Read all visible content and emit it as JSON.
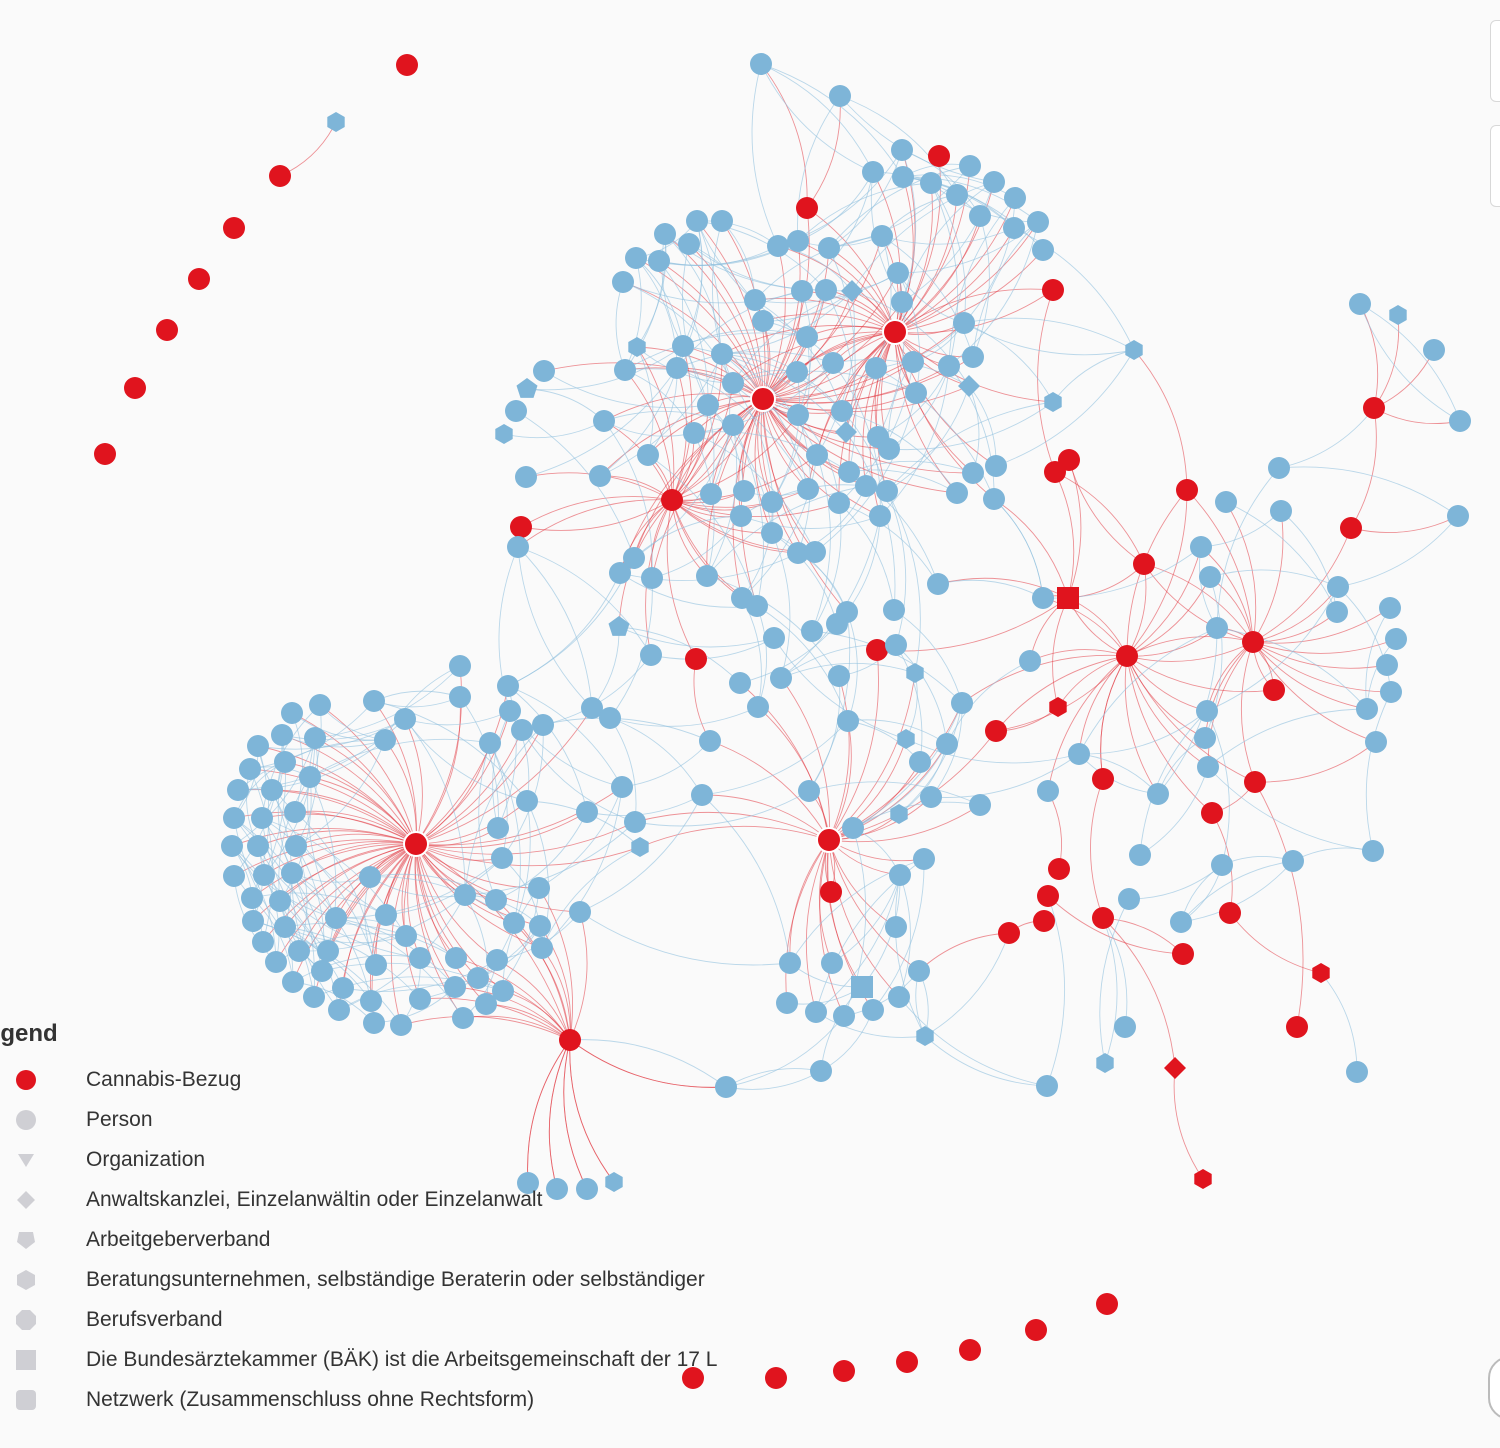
{
  "legend": {
    "title": "egend",
    "items": [
      {
        "key": "cannabis",
        "label": "Cannabis-Bezug",
        "shape": "circle",
        "color": "#e0141e"
      },
      {
        "key": "person",
        "label": "Person",
        "shape": "circle",
        "color": "#cfcfd4"
      },
      {
        "key": "organization",
        "label": "Organization",
        "shape": "triangle-down",
        "color": "#cfcfd4"
      },
      {
        "key": "law-firm",
        "label": "Anwaltskanzlei, Einzelanwältin oder Einzelanwalt",
        "shape": "diamond",
        "color": "#cfcfd4"
      },
      {
        "key": "employer-assoc",
        "label": "Arbeitgeberverband",
        "shape": "pentagon",
        "color": "#cfcfd4"
      },
      {
        "key": "consulting",
        "label": "Beratungsunternehmen, selbständige Beraterin oder selbständiger",
        "shape": "hexagon",
        "color": "#cfcfd4"
      },
      {
        "key": "professional-assoc",
        "label": "Berufsverband",
        "shape": "octagon",
        "color": "#cfcfd4"
      },
      {
        "key": "baek",
        "label": "Die Bundesärztekammer (BÄK) ist die Arbeitsgemeinschaft der 17 L",
        "shape": "square",
        "color": "#cfcfd4"
      },
      {
        "key": "network",
        "label": "Netzwerk (Zusammenschluss ohne Rechtsform)",
        "shape": "rounded-square",
        "color": "#cfcfd4"
      }
    ]
  },
  "colors": {
    "cannabis_node": "#e0141e",
    "default_node": "#7eb5d8",
    "cannabis_edge": "#e23b44",
    "default_edge": "#8fc0dd"
  }
}
